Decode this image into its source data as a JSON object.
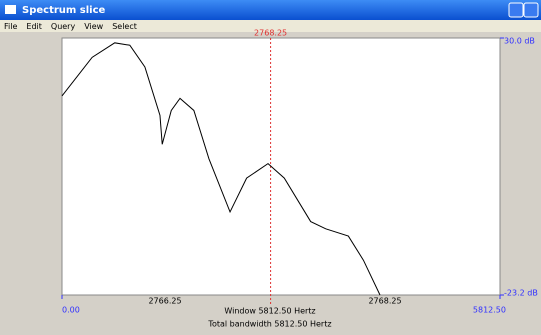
{
  "window": {
    "title": "Spectrum slice",
    "menu": [
      "File",
      "Edit",
      "Query",
      "View",
      "Select"
    ]
  },
  "chart_data": {
    "type": "line",
    "x": [
      0,
      400,
      700,
      900,
      1100,
      1300,
      1330,
      1450,
      1566,
      1750,
      1950,
      2230,
      2450,
      2734,
      2950,
      3300,
      3500,
      3800,
      4000,
      4220
    ],
    "series": [
      {
        "color": "#000000",
        "values": [
          18,
          26,
          29,
          28.5,
          24,
          14,
          8,
          15,
          17.5,
          15,
          5,
          -6,
          1,
          4,
          1,
          -8,
          -9.5,
          -11,
          -16,
          -23.2
        ]
      }
    ],
    "xlim": [
      0,
      5812.5
    ],
    "ylim": [
      -23.2,
      30.0
    ],
    "yticks": [
      {
        "value": 30.0,
        "label": "30.0 dB"
      },
      {
        "value": -23.2,
        "label": "-23.2 dB"
      }
    ],
    "xticks": [
      {
        "value": 0,
        "label": "0.00"
      },
      {
        "value": 5812.5,
        "label": "5812.50"
      }
    ],
    "cursor": {
      "value": 2768.25,
      "label": "2768.25"
    },
    "bottom_labels": [
      "2766.25",
      "2768.25"
    ],
    "window_label": "Window 5812.50 Hertz",
    "bandwidth_label": "Total bandwidth 5812.50 Hertz"
  }
}
